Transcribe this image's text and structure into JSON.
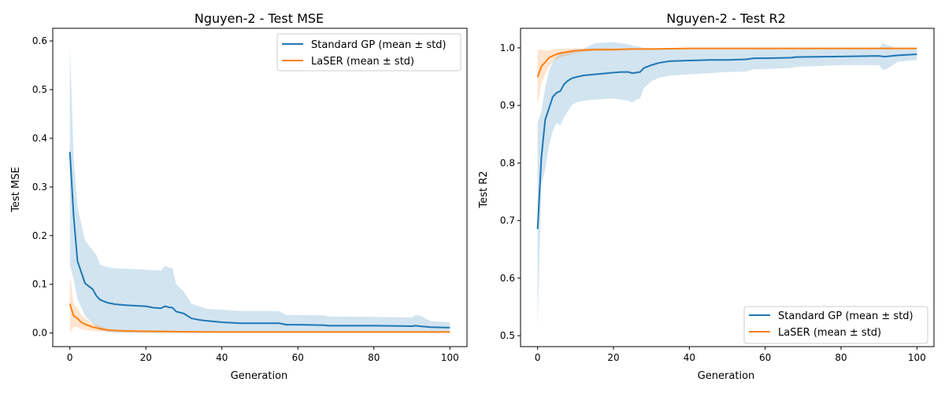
{
  "chart_data": [
    {
      "type": "line",
      "title": "Nguyen-2 - Test MSE",
      "xlabel": "Generation",
      "ylabel": "Test MSE",
      "xlim": [
        -4.5,
        104.5
      ],
      "ylim": [
        -0.028,
        0.626
      ],
      "xticks": [
        0,
        20,
        40,
        60,
        80,
        100
      ],
      "xtick_labels": [
        "0",
        "20",
        "40",
        "60",
        "80",
        "100"
      ],
      "yticks": [
        0.0,
        0.1,
        0.2,
        0.3,
        0.4,
        0.5,
        0.6
      ],
      "ytick_labels": [
        "0.0",
        "0.1",
        "0.2",
        "0.3",
        "0.4",
        "0.5",
        "0.6"
      ],
      "legend_position": "top-right",
      "series": [
        {
          "name": "Standard GP (mean ± std)",
          "color": "#1f77b4",
          "x": [
            0,
            1,
            2,
            4,
            6,
            7,
            8,
            10,
            12,
            15,
            20,
            22,
            24,
            25,
            26,
            27,
            28,
            30,
            32,
            34,
            36,
            40,
            45,
            50,
            55,
            57,
            60,
            67,
            68,
            80,
            90,
            91,
            92,
            95,
            100
          ],
          "mean": [
            0.372,
            0.24,
            0.148,
            0.102,
            0.09,
            0.076,
            0.068,
            0.062,
            0.059,
            0.057,
            0.055,
            0.052,
            0.051,
            0.055,
            0.053,
            0.052,
            0.044,
            0.04,
            0.03,
            0.027,
            0.025,
            0.022,
            0.02,
            0.02,
            0.02,
            0.017,
            0.017,
            0.016,
            0.015,
            0.015,
            0.014,
            0.015,
            0.014,
            0.012,
            0.011
          ],
          "upper": [
            0.59,
            0.36,
            0.26,
            0.19,
            0.17,
            0.16,
            0.14,
            0.135,
            0.133,
            0.132,
            0.13,
            0.129,
            0.128,
            0.138,
            0.135,
            0.133,
            0.1,
            0.085,
            0.06,
            0.055,
            0.05,
            0.048,
            0.045,
            0.045,
            0.045,
            0.037,
            0.037,
            0.036,
            0.034,
            0.033,
            0.032,
            0.037,
            0.036,
            0.024,
            0.022
          ],
          "lower": [
            0.14,
            0.11,
            0.07,
            0.035,
            0.02,
            0.01,
            0.005,
            0.002,
            0.0,
            0.0,
            0.0,
            0.0,
            0.0,
            0.0,
            0.0,
            0.0,
            0.0,
            0.0,
            0.0,
            0.0,
            0.0,
            0.0,
            0.0,
            0.0,
            0.0,
            0.0,
            0.0,
            0.0,
            0.0,
            0.0,
            0.0,
            0.0,
            0.0,
            0.0,
            0.0
          ]
        },
        {
          "name": "LaSER (mean ± std)",
          "color": "#ff7f0e",
          "x": [
            0,
            1,
            2,
            3,
            4,
            5,
            6,
            8,
            10,
            12,
            15,
            20,
            25,
            30,
            40,
            60,
            100
          ],
          "mean": [
            0.06,
            0.035,
            0.03,
            0.022,
            0.018,
            0.015,
            0.012,
            0.009,
            0.006,
            0.005,
            0.004,
            0.0035,
            0.003,
            0.0025,
            0.002,
            0.002,
            0.002
          ],
          "upper": [
            0.12,
            0.06,
            0.05,
            0.038,
            0.03,
            0.025,
            0.02,
            0.015,
            0.009,
            0.007,
            0.006,
            0.0055,
            0.005,
            0.004,
            0.003,
            0.003,
            0.003
          ],
          "lower": [
            0.0,
            0.012,
            0.012,
            0.008,
            0.006,
            0.005,
            0.004,
            0.003,
            0.003,
            0.003,
            0.002,
            0.0015,
            0.001,
            0.001,
            0.001,
            0.001,
            0.001
          ]
        }
      ]
    },
    {
      "type": "line",
      "title": "Nguyen-2 - Test R2",
      "xlabel": "Generation",
      "ylabel": "Test R2",
      "xlim": [
        -4.5,
        104.5
      ],
      "ylim": [
        0.481,
        1.034
      ],
      "xticks": [
        0,
        20,
        40,
        60,
        80,
        100
      ],
      "xtick_labels": [
        "0",
        "20",
        "40",
        "60",
        "80",
        "100"
      ],
      "yticks": [
        0.5,
        0.6,
        0.7,
        0.8,
        0.9,
        1.0
      ],
      "ytick_labels": [
        "0.5",
        "0.6",
        "0.7",
        "0.8",
        "0.9",
        "1.0"
      ],
      "legend_position": "bottom-right",
      "series": [
        {
          "name": "Standard GP (mean ± std)",
          "color": "#1f77b4",
          "x": [
            0,
            1,
            2,
            3,
            4,
            5,
            6,
            7,
            8,
            9,
            10,
            12,
            15,
            20,
            22,
            24,
            25,
            26,
            27,
            28,
            30,
            32,
            35,
            40,
            45,
            50,
            55,
            57,
            60,
            67,
            68,
            80,
            90,
            91,
            92,
            95,
            100
          ],
          "mean": [
            0.685,
            0.81,
            0.875,
            0.895,
            0.915,
            0.922,
            0.925,
            0.937,
            0.943,
            0.947,
            0.949,
            0.952,
            0.954,
            0.957,
            0.958,
            0.958,
            0.956,
            0.957,
            0.958,
            0.965,
            0.97,
            0.974,
            0.977,
            0.978,
            0.979,
            0.979,
            0.98,
            0.982,
            0.982,
            0.983,
            0.984,
            0.985,
            0.986,
            0.985,
            0.985,
            0.987,
            0.989
          ],
          "upper": [
            0.87,
            0.89,
            0.93,
            0.96,
            0.975,
            0.985,
            0.99,
            0.993,
            0.995,
            0.997,
            0.998,
            0.998,
            1.008,
            1.01,
            1.008,
            1.006,
            1.004,
            1.003,
            1.002,
            1.0,
            1.0,
            0.999,
            0.999,
            0.999,
            0.999,
            0.999,
            0.999,
            0.999,
            0.999,
            0.999,
            0.999,
            0.999,
            0.999,
            1.008,
            1.005,
            0.999,
            0.999
          ],
          "lower": [
            0.515,
            0.76,
            0.79,
            0.83,
            0.855,
            0.87,
            0.865,
            0.88,
            0.89,
            0.9,
            0.905,
            0.908,
            0.91,
            0.912,
            0.91,
            0.908,
            0.905,
            0.91,
            0.912,
            0.93,
            0.942,
            0.948,
            0.952,
            0.954,
            0.956,
            0.958,
            0.959,
            0.963,
            0.963,
            0.965,
            0.967,
            0.97,
            0.97,
            0.962,
            0.963,
            0.976,
            0.979
          ]
        },
        {
          "name": "LaSER (mean ± std)",
          "color": "#ff7f0e",
          "x": [
            0,
            1,
            2,
            3,
            4,
            5,
            6,
            8,
            10,
            12,
            15,
            20,
            25,
            30,
            40,
            60,
            100
          ],
          "mean": [
            0.949,
            0.968,
            0.975,
            0.983,
            0.986,
            0.989,
            0.991,
            0.993,
            0.995,
            0.996,
            0.997,
            0.997,
            0.998,
            0.998,
            0.999,
            0.999,
            0.999
          ],
          "upper": [
            0.997,
            0.997,
            0.996,
            0.996,
            0.997,
            0.998,
            0.998,
            0.999,
            0.999,
            0.999,
            0.999,
            0.999,
            0.999,
            0.999,
            0.999,
            0.999,
            0.999
          ],
          "lower": [
            0.9,
            0.938,
            0.954,
            0.968,
            0.975,
            0.98,
            0.984,
            0.987,
            0.991,
            0.993,
            0.995,
            0.995,
            0.997,
            0.997,
            0.998,
            0.998,
            0.998
          ]
        }
      ]
    }
  ]
}
